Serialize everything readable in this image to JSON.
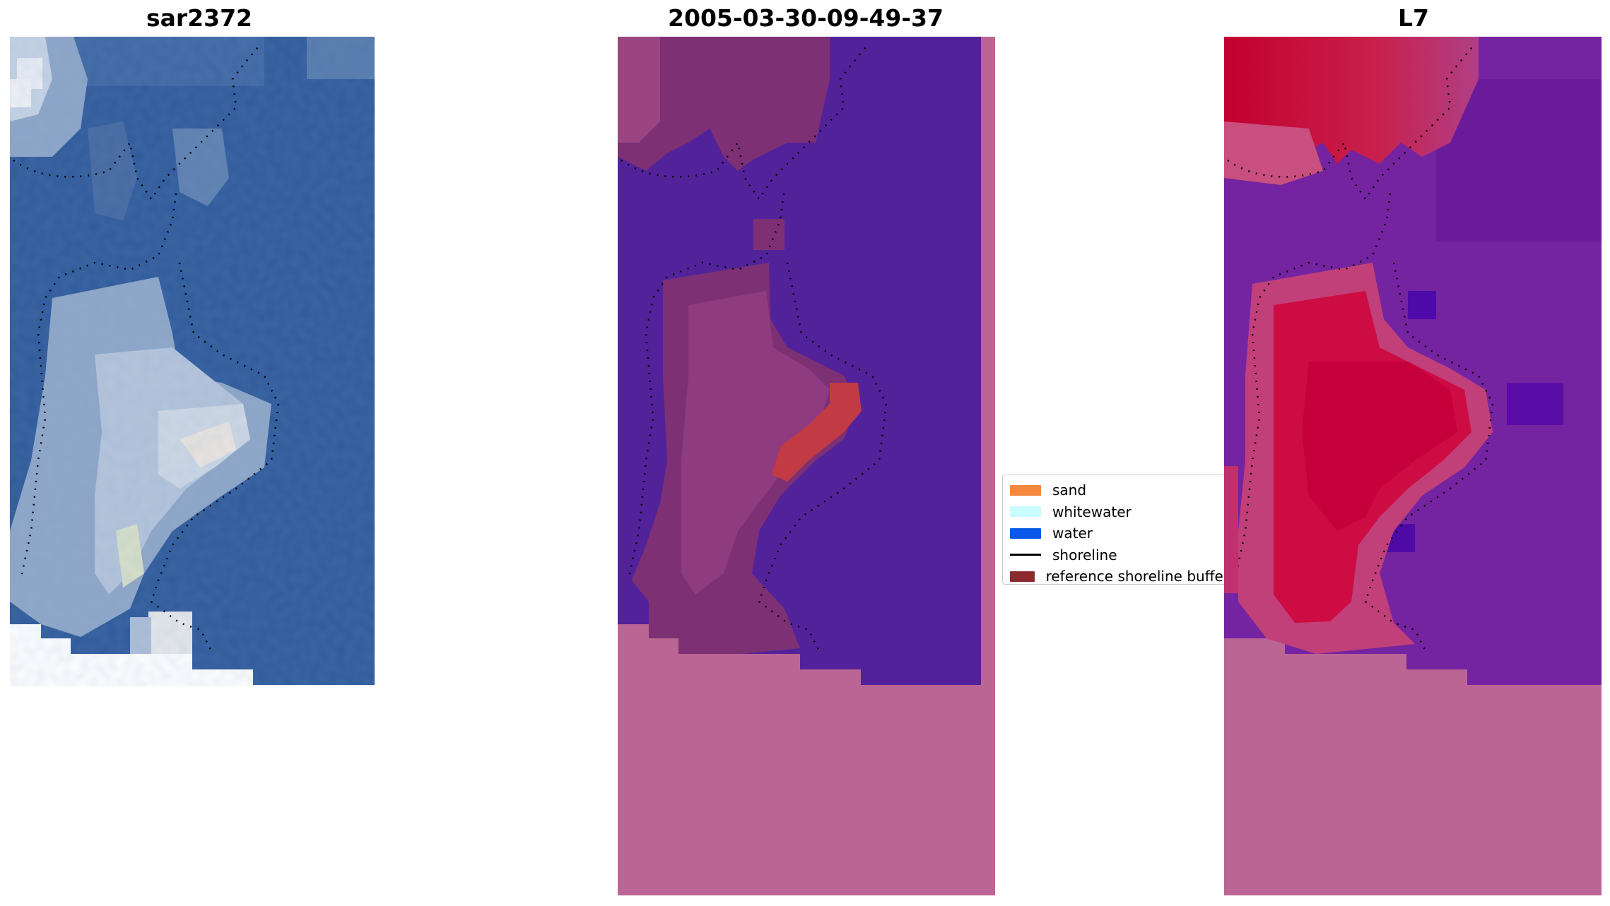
{
  "panels": [
    {
      "title": "sar2372"
    },
    {
      "title": "2005-03-30-09-49-37"
    },
    {
      "title": "L7"
    }
  ],
  "legend": {
    "items": [
      {
        "label": "sand",
        "color": "#f5883f",
        "kind": "patch"
      },
      {
        "label": "whitewater",
        "color": "#c8fcff",
        "kind": "patch"
      },
      {
        "label": "water",
        "color": "#0b58e8",
        "kind": "patch"
      },
      {
        "label": "shoreline",
        "color": "#000000",
        "kind": "line"
      },
      {
        "label": "reference shoreline buffer",
        "color": "#8b2a2c",
        "kind": "patch"
      }
    ]
  },
  "colors": {
    "ocean_blue": "#2f5a9a",
    "background_blue": "#3a67a8",
    "sand_light": "#d6dde8",
    "classified_water": "#52229a",
    "classified_land": "#7e3074",
    "classified_sand": "#c23a44",
    "nodata_pink": "#bb6595",
    "mndwi_red": "#c10035",
    "mndwi_purple": "#6a1b9a"
  }
}
